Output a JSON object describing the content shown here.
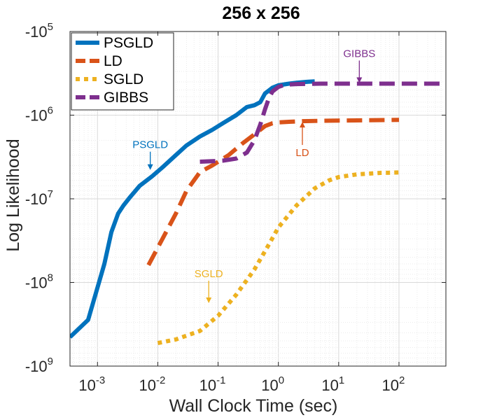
{
  "chart_data": {
    "type": "line",
    "title": "256 x 256",
    "xlabel": "Wall Clock Time (sec)",
    "ylabel": "Log Likelihood",
    "xscale": "log",
    "yscale": "log",
    "xlim": [
      0.00035,
      600
    ],
    "ylim_magnitude": [
      100000,
      1000000000
    ],
    "grid": true,
    "legend_position": "top-left",
    "x_ticks": [
      {
        "base": "10",
        "exp": "-3",
        "value": 0.001
      },
      {
        "base": "10",
        "exp": "-2",
        "value": 0.01
      },
      {
        "base": "10",
        "exp": "-1",
        "value": 0.1
      },
      {
        "base": "10",
        "exp": "0",
        "value": 1
      },
      {
        "base": "10",
        "exp": "1",
        "value": 10
      },
      {
        "base": "10",
        "exp": "2",
        "value": 100
      }
    ],
    "y_ticks": [
      {
        "base": "-10",
        "exp": "5",
        "value": 100000
      },
      {
        "base": "-10",
        "exp": "6",
        "value": 1000000
      },
      {
        "base": "-10",
        "exp": "7",
        "value": 10000000
      },
      {
        "base": "-10",
        "exp": "8",
        "value": 100000000
      },
      {
        "base": "-10",
        "exp": "9",
        "value": 1000000000
      }
    ],
    "series": [
      {
        "name": "PSGLD",
        "color": "#0072BD",
        "style": "solid",
        "x": [
          0.00035,
          0.0007,
          0.0013,
          0.0017,
          0.0022,
          0.0027,
          0.0035,
          0.005,
          0.008,
          0.012,
          0.02,
          0.03,
          0.05,
          0.08,
          0.12,
          0.2,
          0.3,
          0.4,
          0.5,
          0.6,
          0.8,
          1.0,
          1.5,
          2.0,
          3.0,
          4.0
        ],
        "y": [
          450000000,
          280000000,
          60000000,
          25000000,
          15000000,
          12000000,
          9500000,
          7000000,
          5400000,
          4200000,
          3000000,
          2300000,
          1800000,
          1500000,
          1250000,
          1000000,
          800000,
          760000,
          700000,
          550000,
          470000,
          440000,
          420000,
          410000,
          400000,
          395000
        ]
      },
      {
        "name": "LD",
        "color": "#D95319",
        "style": "dashed",
        "x": [
          0.007,
          0.012,
          0.02,
          0.03,
          0.05,
          0.08,
          0.15,
          0.25,
          0.4,
          0.6,
          0.8,
          1.0,
          1.5,
          2.5,
          5,
          10,
          30,
          100
        ],
        "y": [
          62000000,
          30000000,
          15000000,
          8000000,
          4800000,
          4000000,
          3000000,
          2200000,
          1700000,
          1350000,
          1250000,
          1220000,
          1200000,
          1180000,
          1170000,
          1160000,
          1150000,
          1140000
        ]
      },
      {
        "name": "SGLD",
        "color": "#EDB120",
        "style": "dotted",
        "x": [
          0.01,
          0.02,
          0.05,
          0.1,
          0.2,
          0.4,
          0.7,
          1.0,
          2,
          4,
          7,
          10,
          20,
          50,
          100
        ],
        "y": [
          530000000,
          480000000,
          380000000,
          250000000,
          140000000,
          70000000,
          35000000,
          22000000,
          12000000,
          7500000,
          6000000,
          5500000,
          5100000,
          4900000,
          4850000
        ]
      },
      {
        "name": "GIBBS",
        "color": "#7E2F8E",
        "style": "dashed",
        "x": [
          0.05,
          0.08,
          0.12,
          0.2,
          0.3,
          0.4,
          0.5,
          0.6,
          0.7,
          0.8,
          1.0,
          1.2,
          1.5,
          2,
          5,
          20,
          100,
          500
        ],
        "y": [
          3600000,
          3550000,
          3500000,
          3300000,
          2800000,
          2000000,
          1300000,
          850000,
          620000,
          520000,
          460000,
          440000,
          430000,
          425000,
          420000,
          420000,
          420000,
          420000
        ]
      }
    ],
    "annotations": [
      {
        "text": "PSGLD",
        "color": "#0072BD",
        "arrow_to": [
          0.0075,
          4600000
        ]
      },
      {
        "text": "LD",
        "color": "#D95319",
        "arrow_to": [
          2.5,
          1180000
        ]
      },
      {
        "text": "SGLD",
        "color": "#EDB120",
        "arrow_to": [
          0.07,
          180000000
        ]
      },
      {
        "text": "GIBBS",
        "color": "#7E2F8E",
        "arrow_to": [
          22,
          420000
        ]
      }
    ]
  }
}
